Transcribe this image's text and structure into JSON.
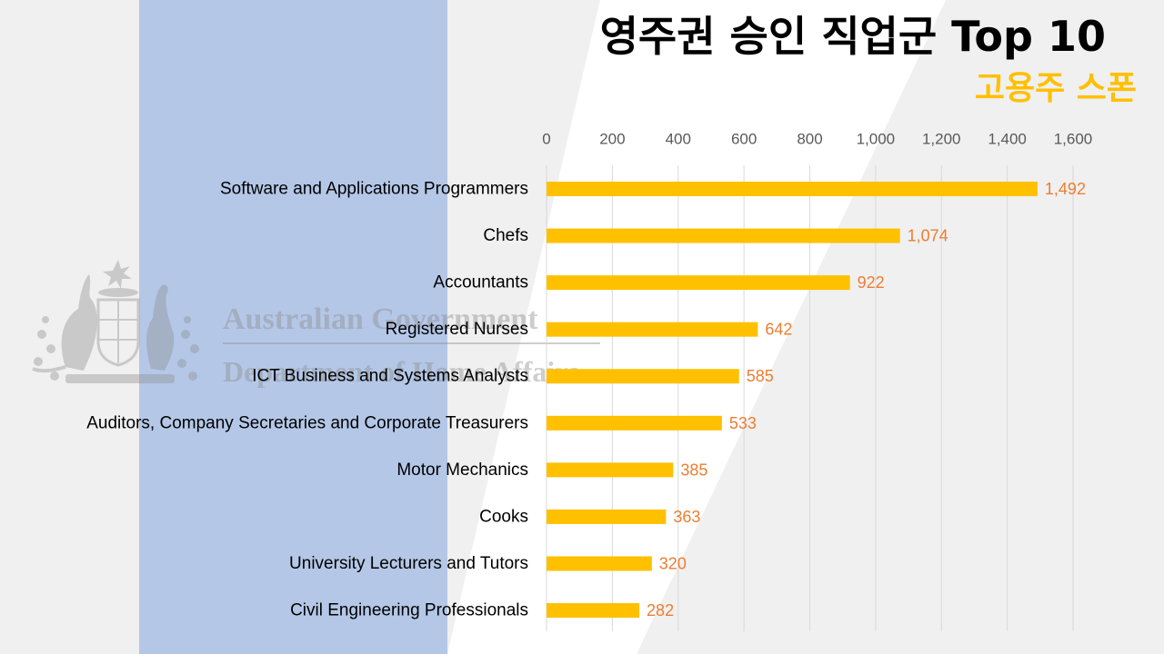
{
  "watermark": {
    "line1": "Australian Government",
    "line2": "Department of Home Affairs",
    "emblem_icon": "coat-of-arms-icon"
  },
  "colors": {
    "background": "#f0f0f0",
    "stripe": "#ffffff",
    "band": "#b4c7e7",
    "watermark": "#8c8c8c",
    "title": "#000000",
    "subtitle": "#ffc000",
    "bar": "#ffc000",
    "data_label": "#ed7d31",
    "tick_label": "#595959",
    "category_label": "#000000",
    "grid": "#d9d9d9"
  },
  "chart_data": {
    "type": "bar",
    "orientation": "horizontal",
    "title": "영주권 승인 직업군 Top 10",
    "subtitle": "고용주 스폰",
    "categories": [
      "Software and Applications Programmers",
      "Chefs",
      "Accountants",
      "Registered Nurses",
      "ICT Business and Systems Analysts",
      "Auditors, Company Secretaries and Corporate Treasurers",
      "Motor Mechanics",
      "Cooks",
      "University Lecturers and Tutors",
      "Civil Engineering Professionals"
    ],
    "values": [
      1492,
      1074,
      922,
      642,
      585,
      533,
      385,
      363,
      320,
      282
    ],
    "data_labels": [
      "1,492",
      "1,074",
      "922",
      "642",
      "585",
      "533",
      "385",
      "363",
      "320",
      "282"
    ],
    "xlim": [
      0,
      1600
    ],
    "xticks": [
      0,
      200,
      400,
      600,
      800,
      1000,
      1200,
      1400,
      1600
    ],
    "xtick_labels": [
      "0",
      "200",
      "400",
      "600",
      "800",
      "1,000",
      "1,200",
      "1,400",
      "1,600"
    ],
    "xaxis_position": "top",
    "grid": true,
    "legend": "none"
  }
}
